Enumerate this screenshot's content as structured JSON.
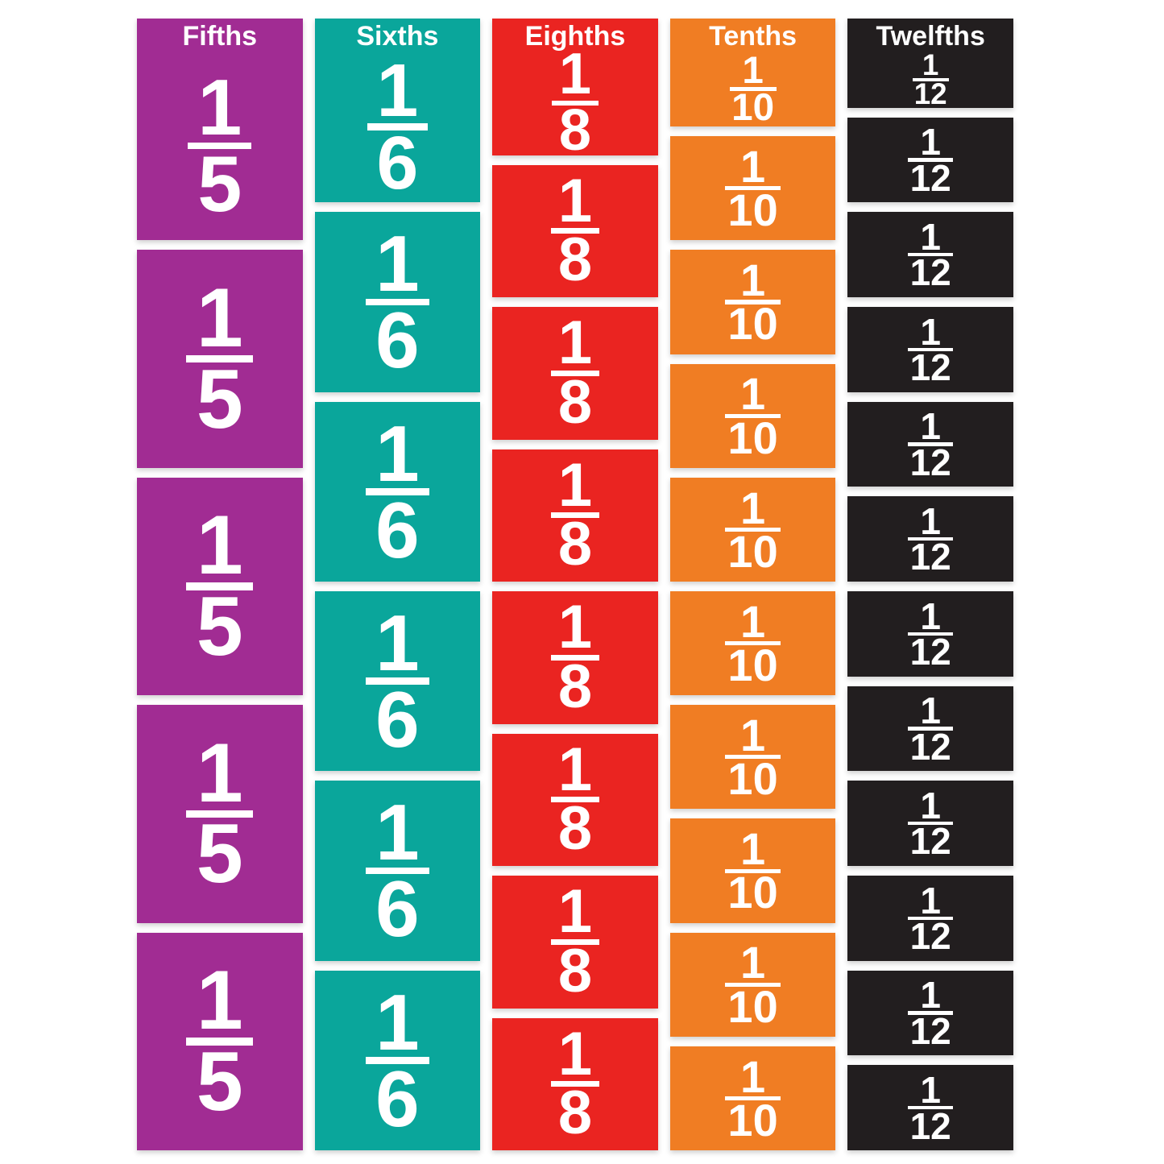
{
  "board": {
    "background": "#ffffff",
    "columns": [
      {
        "label": "Fifths",
        "numerator": "1",
        "denominator": "5",
        "tile_count": 5,
        "color": "#a12c93"
      },
      {
        "label": "Sixths",
        "numerator": "1",
        "denominator": "6",
        "tile_count": 6,
        "color": "#0aa69b"
      },
      {
        "label": "Eighths",
        "numerator": "1",
        "denominator": "8",
        "tile_count": 8,
        "color": "#ea2421"
      },
      {
        "label": "Tenths",
        "numerator": "1",
        "denominator": "10",
        "tile_count": 10,
        "color": "#f07d23"
      },
      {
        "label": "Twelfths",
        "numerator": "1",
        "denominator": "12",
        "tile_count": 12,
        "color": "#221e1f"
      }
    ]
  }
}
